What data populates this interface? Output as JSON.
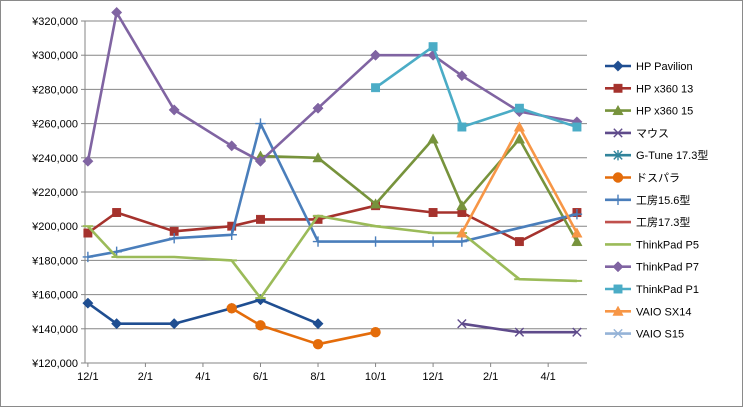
{
  "chart_data": {
    "type": "line",
    "title": "",
    "xlabel": "",
    "ylabel": "",
    "ylim": [
      120000,
      320000
    ],
    "y_tick_step": 20000,
    "y_tick_prefix": "¥",
    "grid": "horizontal",
    "legend_position": "right",
    "x_tick_labels": [
      {
        "x": 0,
        "label": "12/1"
      },
      {
        "x": 2,
        "label": "2/1"
      },
      {
        "x": 4,
        "label": "4/1"
      },
      {
        "x": 6,
        "label": "6/1"
      },
      {
        "x": 8,
        "label": "8/1"
      },
      {
        "x": 10,
        "label": "10/1"
      },
      {
        "x": 12,
        "label": "12/1"
      },
      {
        "x": 14,
        "label": "2/1"
      },
      {
        "x": 16,
        "label": "4/1"
      }
    ],
    "x_range": [
      -0.1,
      17.35
    ],
    "series": [
      {
        "name": "HP Pavilion",
        "color": "#1f4e91",
        "marker": "diamond",
        "points": [
          [
            0,
            155000
          ],
          [
            1,
            143000
          ],
          [
            3,
            143000
          ],
          [
            5,
            152000
          ],
          [
            6,
            157000
          ],
          [
            8,
            143000
          ]
        ]
      },
      {
        "name": "HP x360 13",
        "color": "#a5322d",
        "marker": "square",
        "points": [
          [
            0,
            196000
          ],
          [
            1,
            208000
          ],
          [
            3,
            197000
          ],
          [
            5,
            200000
          ],
          [
            6,
            204000
          ],
          [
            8,
            204000
          ],
          [
            10,
            212000
          ],
          [
            12,
            208000
          ],
          [
            13,
            208000
          ],
          [
            15,
            191000
          ],
          [
            17,
            208000
          ]
        ]
      },
      {
        "name": "HP x360 15",
        "color": "#77933c",
        "marker": "triangle",
        "points": [
          [
            6,
            241000
          ],
          [
            8,
            240000
          ],
          [
            10,
            213000
          ],
          [
            12,
            251000
          ],
          [
            13,
            212000
          ],
          [
            15,
            251000
          ],
          [
            17,
            191000
          ]
        ]
      },
      {
        "name": "マウス",
        "color": "#5f4b8b",
        "marker": "x",
        "points": [
          [
            13,
            143000
          ],
          [
            15,
            138000
          ],
          [
            17,
            138000
          ]
        ]
      },
      {
        "name": "G-Tune 17.3型",
        "color": "#31849b",
        "marker": "asterisk",
        "points": []
      },
      {
        "name": "ドスパラ",
        "color": "#e46c0a",
        "marker": "circle",
        "points": [
          [
            5,
            152000
          ],
          [
            6,
            142000
          ],
          [
            8,
            131000
          ],
          [
            10,
            138000
          ]
        ]
      },
      {
        "name": "工房15.6型",
        "color": "#4a7ebb",
        "marker": "plus",
        "points": [
          [
            0,
            182000
          ],
          [
            1,
            185000
          ],
          [
            3,
            193000
          ],
          [
            5,
            195000
          ],
          [
            6,
            260000
          ],
          [
            8,
            191000
          ],
          [
            10,
            191000
          ],
          [
            12,
            191000
          ],
          [
            13,
            191000
          ],
          [
            17,
            207000
          ]
        ]
      },
      {
        "name": "工房17.3型",
        "color": "#c0504d",
        "marker": "dash",
        "points": []
      },
      {
        "name": "ThinkPad P5",
        "color": "#9bbb59",
        "marker": "dash",
        "points": [
          [
            0,
            200000
          ],
          [
            1,
            182000
          ],
          [
            3,
            182000
          ],
          [
            5,
            180000
          ],
          [
            6,
            158000
          ],
          [
            8,
            206000
          ],
          [
            10,
            200000
          ],
          [
            12,
            196000
          ],
          [
            13,
            196000
          ],
          [
            15,
            169000
          ],
          [
            17,
            168000
          ]
        ]
      },
      {
        "name": "ThinkPad P7",
        "color": "#8064a2",
        "marker": "diamond",
        "points": [
          [
            0,
            238000
          ],
          [
            1,
            325000
          ],
          [
            3,
            268000
          ],
          [
            5,
            247000
          ],
          [
            6,
            238000
          ],
          [
            8,
            269000
          ],
          [
            10,
            300000
          ],
          [
            12,
            300000
          ],
          [
            13,
            288000
          ],
          [
            15,
            267000
          ],
          [
            17,
            261000
          ]
        ]
      },
      {
        "name": "ThinkPad P1",
        "color": "#4bacc6",
        "marker": "square",
        "points": [
          [
            10,
            281000
          ],
          [
            12,
            305000
          ],
          [
            13,
            258000
          ],
          [
            15,
            269000
          ],
          [
            17,
            258000
          ]
        ]
      },
      {
        "name": "VAIO SX14",
        "color": "#f79646",
        "marker": "triangle",
        "points": [
          [
            13,
            196000
          ],
          [
            15,
            258000
          ],
          [
            17,
            196000
          ]
        ]
      },
      {
        "name": "VAIO S15",
        "color": "#95b3d7",
        "marker": "x",
        "points": []
      }
    ]
  }
}
